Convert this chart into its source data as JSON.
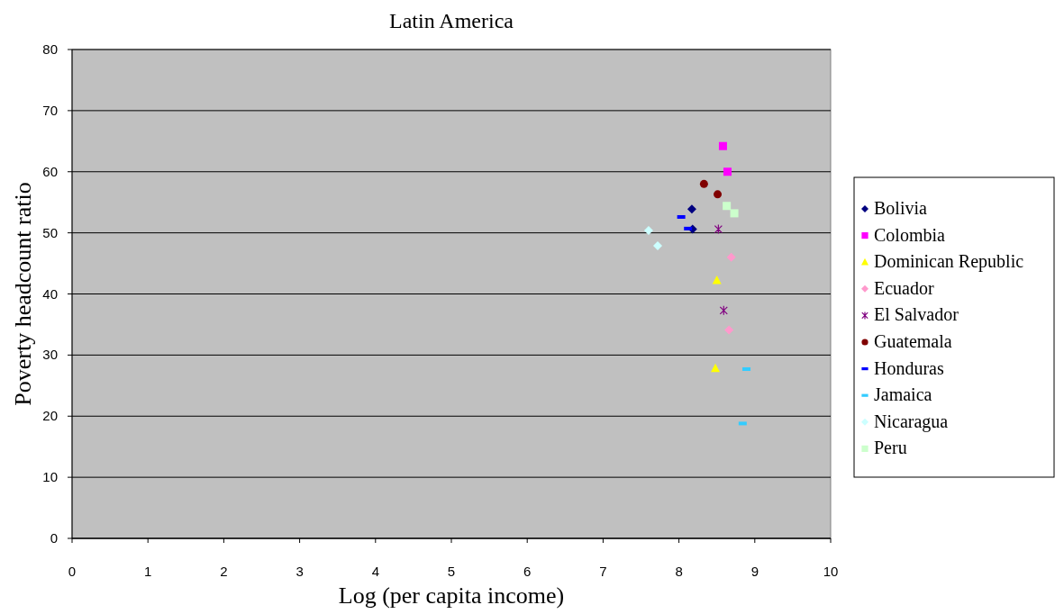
{
  "chart_data": {
    "type": "scatter",
    "title": "Latin America",
    "xlabel": "Log (per capita income)",
    "ylabel": "Poverty headcount ratio",
    "xlim": [
      0,
      10
    ],
    "xticks": [
      0,
      1,
      2,
      3,
      4,
      5,
      6,
      7,
      8,
      9,
      10
    ],
    "ylim": [
      0,
      80
    ],
    "yticks": [
      0,
      10,
      20,
      30,
      40,
      50,
      60,
      70,
      80
    ],
    "grid": "y",
    "legend": "right",
    "series": [
      {
        "name": "Bolivia",
        "color": "#000080",
        "marker": "diamond",
        "x": [
          8.17,
          8.18
        ],
        "values": [
          53.9,
          50.6
        ]
      },
      {
        "name": "Colombia",
        "color": "#ff00ff",
        "marker": "square",
        "x": [
          8.58,
          8.64
        ],
        "values": [
          64.2,
          60.0
        ]
      },
      {
        "name": "Dominican Republic",
        "color": "#ffff00",
        "marker": "triangle",
        "x": [
          8.5,
          8.48
        ],
        "values": [
          42.2,
          27.8
        ]
      },
      {
        "name": "Ecuador",
        "color": "#ff99cc",
        "marker": "diamond",
        "x": [
          8.69,
          8.66
        ],
        "values": [
          46.0,
          34.1
        ]
      },
      {
        "name": "El Salvador",
        "color": "#800080",
        "marker": "cross",
        "x": [
          8.52,
          8.59
        ],
        "values": [
          50.6,
          37.3
        ]
      },
      {
        "name": "Guatemala",
        "color": "#800000",
        "marker": "circle",
        "x": [
          8.33,
          8.51
        ],
        "values": [
          58.0,
          56.3
        ]
      },
      {
        "name": "Honduras",
        "color": "#0000ff",
        "x": [
          8.03,
          8.12
        ],
        "values": [
          52.6,
          50.7
        ]
      },
      {
        "name": "Jamaica",
        "color": "#33ccff",
        "x": [
          8.89,
          8.84
        ],
        "values": [
          27.7,
          18.8
        ]
      },
      {
        "name": "Nicaragua",
        "color": "#ccffff",
        "marker": "diamond",
        "x": [
          7.6,
          7.72
        ],
        "values": [
          50.4,
          47.9
        ]
      },
      {
        "name": "Peru",
        "color": "#ccffcc",
        "marker": "square",
        "x": [
          8.63,
          8.73
        ],
        "values": [
          54.4,
          53.2
        ]
      }
    ]
  }
}
